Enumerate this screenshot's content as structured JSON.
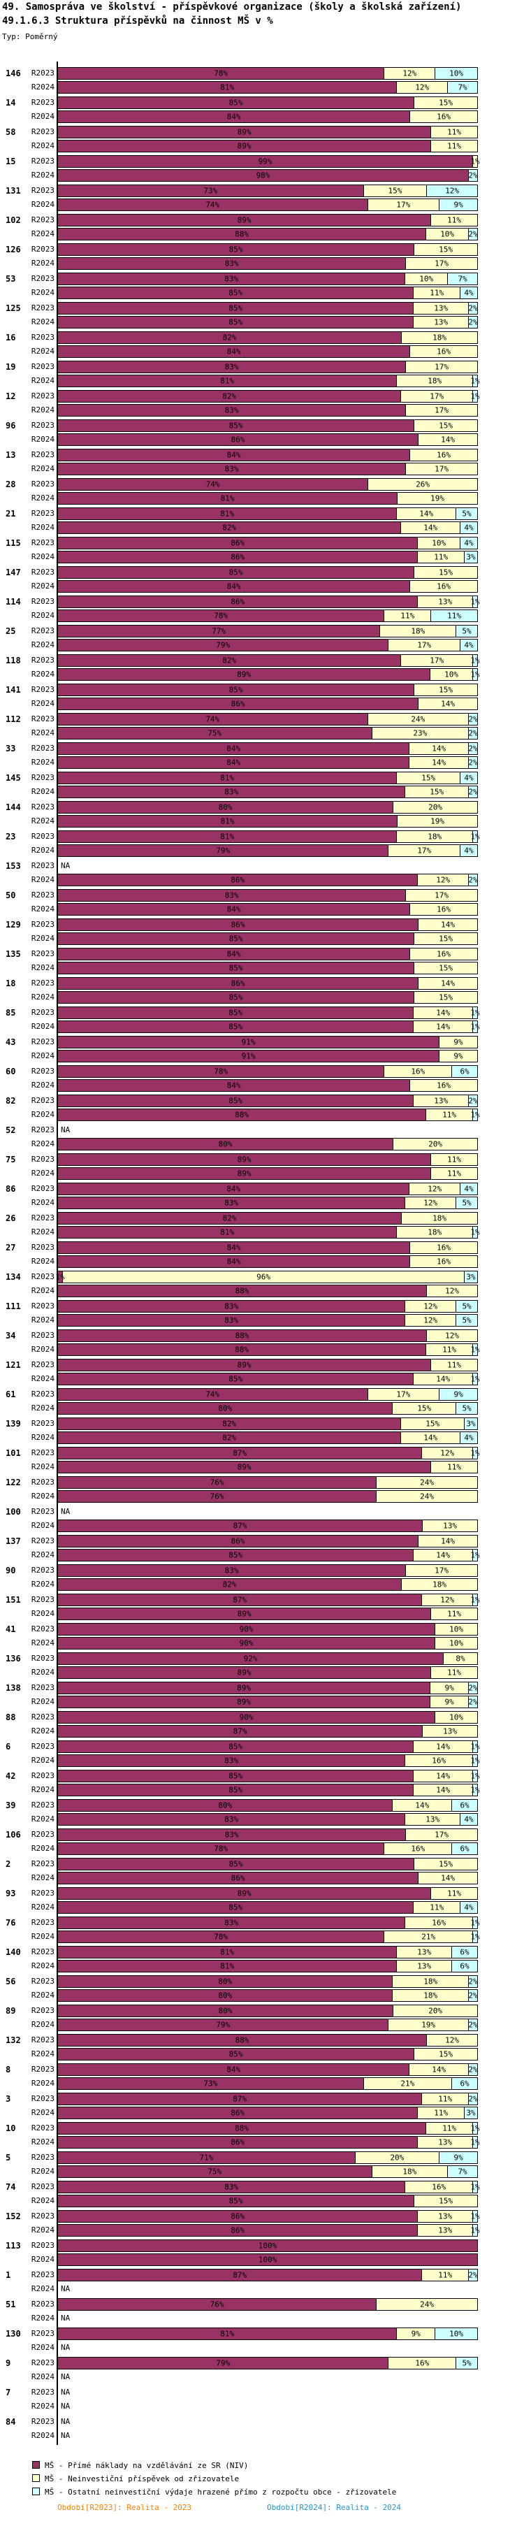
{
  "title_line1": "49. Samospráva ve školství - příspěvkové organizace (školy a školská zařízení)",
  "title_line2": "49.1.6.3 Struktura příspěvků na činnost MŠ v %",
  "type_label": "Typ: Poměrný",
  "legend": [
    {
      "label": "MŠ - Přímé náklady na vzdělávání ze SR (NIV)",
      "color": "#993366"
    },
    {
      "label": "MŠ - Neinvestiční příspěvek od zřizovatele",
      "color": "#FFFFCC"
    },
    {
      "label": "MŠ - Ostatní neinvestiční výdaje hrazené přímo z rozpočtu obce - zřizovatele",
      "color": "#CCFFFF"
    }
  ],
  "footer": {
    "r2023": "Období[R2023]: Realita - 2023",
    "r2023_color": "#FF8000",
    "r2024": "Období[R2024]: Realita - 2024",
    "r2024_color": "#1F97D4"
  },
  "chart_data": {
    "type": "bar",
    "orientation": "horizontal-stacked",
    "unit": "%",
    "xlim": [
      0,
      100
    ],
    "row_labels": [
      "R2023",
      "R2024"
    ],
    "na_text": "NA",
    "series_names": [
      "MŠ - Přímé náklady na vzdělávání ze SR (NIV)",
      "MŠ - Neinvestiční příspěvek od zřizovatele",
      "MŠ - Ostatní neinvestiční výdaje hrazené přímo z rozpočtu obce - zřizovatele"
    ],
    "series_colors": [
      "#993366",
      "#FFFFCC",
      "#CCFFFF"
    ],
    "groups": [
      {
        "id": "146",
        "R2023": [
          78,
          12,
          10
        ],
        "R2024": [
          81,
          12,
          7
        ]
      },
      {
        "id": "14",
        "R2023": [
          85,
          15,
          0
        ],
        "R2024": [
          84,
          16,
          0
        ]
      },
      {
        "id": "58",
        "R2023": [
          89,
          11,
          0
        ],
        "R2024": [
          89,
          11,
          0
        ]
      },
      {
        "id": "15",
        "R2023": [
          99,
          1,
          0
        ],
        "R2024": [
          98,
          0,
          2
        ]
      },
      {
        "id": "131",
        "R2023": [
          73,
          15,
          12
        ],
        "R2024": [
          74,
          17,
          9
        ]
      },
      {
        "id": "102",
        "R2023": [
          89,
          11,
          0
        ],
        "R2024": [
          88,
          10,
          2
        ]
      },
      {
        "id": "126",
        "R2023": [
          85,
          15,
          0
        ],
        "R2024": [
          83,
          17,
          0
        ]
      },
      {
        "id": "53",
        "R2023": [
          83,
          10,
          7
        ],
        "R2024": [
          85,
          11,
          4
        ]
      },
      {
        "id": "125",
        "R2023": [
          85,
          13,
          2
        ],
        "R2024": [
          85,
          13,
          2
        ]
      },
      {
        "id": "16",
        "R2023": [
          82,
          18,
          0
        ],
        "R2024": [
          84,
          16,
          0
        ]
      },
      {
        "id": "19",
        "R2023": [
          83,
          17,
          0
        ],
        "R2024": [
          81,
          18,
          1
        ]
      },
      {
        "id": "12",
        "R2023": [
          82,
          17,
          1
        ],
        "R2024": [
          83,
          17,
          0
        ]
      },
      {
        "id": "96",
        "R2023": [
          85,
          15,
          0
        ],
        "R2024": [
          86,
          14,
          0
        ]
      },
      {
        "id": "13",
        "R2023": [
          84,
          16,
          0
        ],
        "R2024": [
          83,
          17,
          0
        ]
      },
      {
        "id": "28",
        "R2023": [
          74,
          26,
          0
        ],
        "R2024": [
          81,
          19,
          0
        ]
      },
      {
        "id": "21",
        "R2023": [
          81,
          14,
          5
        ],
        "R2024": [
          82,
          14,
          4
        ]
      },
      {
        "id": "115",
        "R2023": [
          86,
          10,
          4
        ],
        "R2024": [
          86,
          11,
          3
        ]
      },
      {
        "id": "147",
        "R2023": [
          85,
          15,
          0
        ],
        "R2024": [
          84,
          16,
          0
        ]
      },
      {
        "id": "114",
        "R2023": [
          86,
          13,
          1
        ],
        "R2024": [
          78,
          11,
          11
        ]
      },
      {
        "id": "25",
        "R2023": [
          77,
          18,
          5
        ],
        "R2024": [
          79,
          17,
          4
        ]
      },
      {
        "id": "118",
        "R2023": [
          82,
          17,
          1
        ],
        "R2024": [
          89,
          10,
          1
        ]
      },
      {
        "id": "141",
        "R2023": [
          85,
          15,
          0
        ],
        "R2024": [
          86,
          14,
          0
        ]
      },
      {
        "id": "112",
        "R2023": [
          74,
          24,
          2
        ],
        "R2024": [
          75,
          23,
          2
        ]
      },
      {
        "id": "33",
        "R2023": [
          84,
          14,
          2
        ],
        "R2024": [
          84,
          14,
          2
        ]
      },
      {
        "id": "145",
        "R2023": [
          81,
          15,
          4
        ],
        "R2024": [
          83,
          15,
          2
        ]
      },
      {
        "id": "144",
        "R2023": [
          80,
          20,
          0
        ],
        "R2024": [
          81,
          19,
          0
        ]
      },
      {
        "id": "23",
        "R2023": [
          81,
          18,
          1
        ],
        "R2024": [
          79,
          17,
          4
        ]
      },
      {
        "id": "153",
        "R2023": "NA",
        "R2024": [
          86,
          12,
          2
        ]
      },
      {
        "id": "50",
        "R2023": [
          83,
          17,
          0
        ],
        "R2024": [
          84,
          16,
          0
        ]
      },
      {
        "id": "129",
        "R2023": [
          86,
          14,
          0
        ],
        "R2024": [
          85,
          15,
          0
        ]
      },
      {
        "id": "135",
        "R2023": [
          84,
          16,
          0
        ],
        "R2024": [
          85,
          15,
          0
        ]
      },
      {
        "id": "18",
        "R2023": [
          86,
          14,
          0
        ],
        "R2024": [
          85,
          15,
          0
        ]
      },
      {
        "id": "85",
        "R2023": [
          85,
          14,
          1
        ],
        "R2024": [
          85,
          14,
          1
        ]
      },
      {
        "id": "43",
        "R2023": [
          91,
          9,
          0
        ],
        "R2024": [
          91,
          9,
          0
        ]
      },
      {
        "id": "60",
        "R2023": [
          78,
          16,
          6
        ],
        "R2024": [
          84,
          16,
          0
        ]
      },
      {
        "id": "82",
        "R2023": [
          85,
          13,
          2
        ],
        "R2024": [
          88,
          11,
          1
        ]
      },
      {
        "id": "52",
        "R2023": "NA",
        "R2024": [
          80,
          20,
          0
        ]
      },
      {
        "id": "75",
        "R2023": [
          89,
          11,
          0
        ],
        "R2024": [
          89,
          11,
          0
        ]
      },
      {
        "id": "86",
        "R2023": [
          84,
          12,
          4
        ],
        "R2024": [
          83,
          12,
          5
        ]
      },
      {
        "id": "26",
        "R2023": [
          82,
          18,
          0
        ],
        "R2024": [
          81,
          18,
          1
        ]
      },
      {
        "id": "27",
        "R2023": [
          84,
          16,
          0
        ],
        "R2024": [
          84,
          16,
          0
        ]
      },
      {
        "id": "134",
        "R2023": [
          1,
          96,
          3
        ],
        "R2024": [
          88,
          12,
          0
        ]
      },
      {
        "id": "111",
        "R2023": [
          83,
          12,
          5
        ],
        "R2024": [
          83,
          12,
          5
        ]
      },
      {
        "id": "34",
        "R2023": [
          88,
          12,
          0
        ],
        "R2024": [
          88,
          11,
          1
        ]
      },
      {
        "id": "121",
        "R2023": [
          89,
          11,
          0
        ],
        "R2024": [
          85,
          14,
          1
        ]
      },
      {
        "id": "61",
        "R2023": [
          74,
          17,
          9
        ],
        "R2024": [
          80,
          15,
          5
        ]
      },
      {
        "id": "139",
        "R2023": [
          82,
          15,
          3
        ],
        "R2024": [
          82,
          14,
          4
        ]
      },
      {
        "id": "101",
        "R2023": [
          87,
          12,
          1
        ],
        "R2024": [
          89,
          11,
          0
        ]
      },
      {
        "id": "122",
        "R2023": [
          76,
          24,
          0
        ],
        "R2024": [
          76,
          24,
          0
        ]
      },
      {
        "id": "100",
        "R2023": "NA",
        "R2024": [
          87,
          13,
          0
        ]
      },
      {
        "id": "137",
        "R2023": [
          86,
          14,
          0
        ],
        "R2024": [
          85,
          14,
          1
        ]
      },
      {
        "id": "90",
        "R2023": [
          83,
          17,
          0
        ],
        "R2024": [
          82,
          18,
          0
        ]
      },
      {
        "id": "151",
        "R2023": [
          87,
          12,
          1
        ],
        "R2024": [
          89,
          11,
          0
        ]
      },
      {
        "id": "41",
        "R2023": [
          90,
          10,
          0
        ],
        "R2024": [
          90,
          10,
          0
        ]
      },
      {
        "id": "136",
        "R2023": [
          92,
          8,
          0
        ],
        "R2024": [
          89,
          11,
          0
        ]
      },
      {
        "id": "138",
        "R2023": [
          89,
          9,
          2
        ],
        "R2024": [
          89,
          9,
          2
        ]
      },
      {
        "id": "88",
        "R2023": [
          90,
          10,
          0
        ],
        "R2024": [
          87,
          13,
          0
        ]
      },
      {
        "id": "6",
        "R2023": [
          85,
          14,
          1
        ],
        "R2024": [
          83,
          16,
          1
        ]
      },
      {
        "id": "42",
        "R2023": [
          85,
          14,
          1
        ],
        "R2024": [
          85,
          14,
          1
        ]
      },
      {
        "id": "39",
        "R2023": [
          80,
          14,
          6
        ],
        "R2024": [
          83,
          13,
          4
        ]
      },
      {
        "id": "106",
        "R2023": [
          83,
          17,
          0
        ],
        "R2024": [
          78,
          16,
          6
        ]
      },
      {
        "id": "2",
        "R2023": [
          85,
          15,
          0
        ],
        "R2024": [
          86,
          14,
          0
        ]
      },
      {
        "id": "93",
        "R2023": [
          89,
          11,
          0
        ],
        "R2024": [
          85,
          11,
          4
        ]
      },
      {
        "id": "76",
        "R2023": [
          83,
          16,
          1
        ],
        "R2024": [
          78,
          21,
          1
        ]
      },
      {
        "id": "140",
        "R2023": [
          81,
          13,
          6
        ],
        "R2024": [
          81,
          13,
          6
        ]
      },
      {
        "id": "56",
        "R2023": [
          80,
          18,
          2
        ],
        "R2024": [
          80,
          18,
          2
        ]
      },
      {
        "id": "89",
        "R2023": [
          80,
          20,
          0
        ],
        "R2024": [
          79,
          19,
          2
        ]
      },
      {
        "id": "132",
        "R2023": [
          88,
          12,
          0
        ],
        "R2024": [
          85,
          15,
          0
        ]
      },
      {
        "id": "8",
        "R2023": [
          84,
          14,
          2
        ],
        "R2024": [
          73,
          21,
          6
        ]
      },
      {
        "id": "3",
        "R2023": [
          87,
          11,
          2
        ],
        "R2024": [
          86,
          11,
          3
        ]
      },
      {
        "id": "10",
        "R2023": [
          88,
          11,
          1
        ],
        "R2024": [
          86,
          13,
          1
        ]
      },
      {
        "id": "5",
        "R2023": [
          71,
          20,
          9
        ],
        "R2024": [
          75,
          18,
          7
        ]
      },
      {
        "id": "74",
        "R2023": [
          83,
          16,
          1
        ],
        "R2024": [
          85,
          15,
          0
        ]
      },
      {
        "id": "152",
        "R2023": [
          86,
          13,
          1
        ],
        "R2024": [
          86,
          13,
          1
        ]
      },
      {
        "id": "113",
        "R2023": [
          100,
          0,
          0
        ],
        "R2024": [
          100,
          0,
          0
        ]
      },
      {
        "id": "1",
        "R2023": [
          87,
          11,
          2
        ],
        "R2024": "NA"
      },
      {
        "id": "51",
        "R2023": [
          76,
          24,
          0
        ],
        "R2024": "NA"
      },
      {
        "id": "130",
        "R2023": [
          81,
          9,
          10
        ],
        "R2024": "NA"
      },
      {
        "id": "9",
        "R2023": [
          79,
          16,
          5
        ],
        "R2024": "NA"
      },
      {
        "id": "7",
        "R2023": "NA",
        "R2024": "NA"
      },
      {
        "id": "84",
        "R2023": "NA",
        "R2024": "NA"
      }
    ]
  }
}
